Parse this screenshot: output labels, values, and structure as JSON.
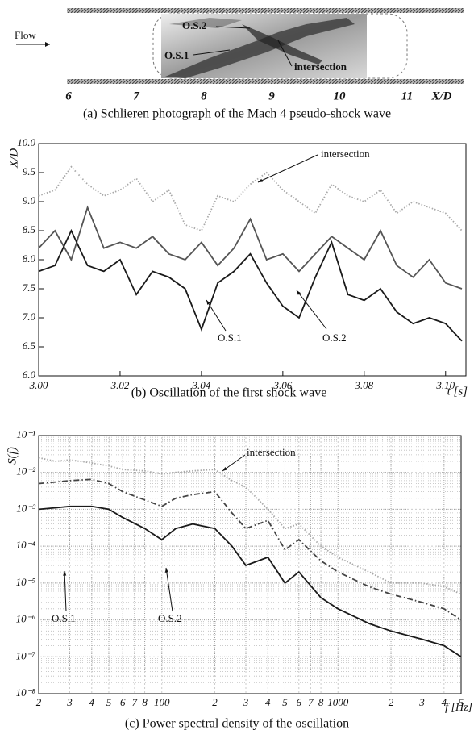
{
  "chart_data": [
    {
      "type": "image",
      "caption": "(a) Schlieren photograph of the Mach 4 pseudo-shock wave",
      "annotations": [
        "Flow",
        "O.S.2",
        "O.S.1",
        "intersection"
      ],
      "x_label": "X/D",
      "xlim": [
        6,
        11
      ],
      "xticks": [
        6,
        7,
        8,
        9,
        10,
        11
      ]
    },
    {
      "type": "line",
      "caption": "(b) Oscillation of the first shock wave",
      "x_label": "t [s]",
      "y_label": "X/D",
      "annotations": [
        "intersection",
        "O.S.1",
        "O.S.2"
      ],
      "xlim": [
        3.0,
        3.105
      ],
      "ylim": [
        6,
        10
      ],
      "xticks": [
        {
          "value": 3,
          "label": "3.00"
        },
        3.02,
        3.04,
        3.06,
        3.08,
        {
          "value": 3.1,
          "label": "3.10"
        }
      ],
      "yticks": [
        {
          "value": 6,
          "label": "6.0"
        },
        6.5,
        {
          "value": 7,
          "label": "7.0"
        },
        7.5,
        {
          "value": 8,
          "label": "8.0"
        },
        8.5,
        {
          "value": 9,
          "label": "9.0"
        },
        9.5,
        {
          "value": 10,
          "label": "10.0"
        }
      ],
      "x": [
        3.0,
        3.004,
        3.008,
        3.012,
        3.016,
        3.02,
        3.024,
        3.028,
        3.032,
        3.036,
        3.04,
        3.044,
        3.048,
        3.052,
        3.056,
        3.06,
        3.064,
        3.068,
        3.072,
        3.076,
        3.08,
        3.084,
        3.088,
        3.092,
        3.096,
        3.1,
        3.104
      ],
      "series": [
        {
          "name": "intersection",
          "color": "#a8a8a8",
          "line_style": "dotted",
          "values": [
            9.1,
            9.2,
            9.6,
            9.3,
            9.1,
            9.2,
            9.4,
            9.0,
            9.2,
            8.6,
            8.5,
            9.1,
            9.0,
            9.3,
            9.5,
            9.2,
            9.0,
            8.8,
            9.3,
            9.1,
            9.0,
            9.2,
            8.8,
            9.0,
            8.9,
            8.8,
            8.5
          ]
        },
        {
          "name": "O.S.2",
          "color": "#555555",
          "line_style": "solid",
          "values": [
            8.2,
            8.5,
            8.0,
            8.9,
            8.2,
            8.3,
            8.2,
            8.4,
            8.1,
            8.0,
            8.3,
            7.9,
            8.2,
            8.7,
            8.0,
            8.1,
            7.8,
            8.1,
            8.4,
            8.2,
            8.0,
            8.5,
            7.9,
            7.7,
            8.0,
            7.6,
            7.5
          ]
        },
        {
          "name": "O.S.1",
          "color": "#1a1a1a",
          "line_style": "solid",
          "values": [
            7.8,
            7.9,
            8.5,
            7.9,
            7.8,
            8.0,
            7.4,
            7.8,
            7.7,
            7.5,
            6.8,
            7.6,
            7.8,
            8.1,
            7.6,
            7.2,
            7.0,
            7.7,
            8.3,
            7.4,
            7.3,
            7.5,
            7.1,
            6.9,
            7.0,
            6.9,
            6.6
          ]
        }
      ]
    },
    {
      "type": "loglog",
      "caption": "(c) Power spectral density of the oscillation",
      "x_label": "f [Hz]",
      "y_label": "S(f)",
      "annotations": [
        "intersection",
        "O.S.1",
        "O.S.2"
      ],
      "xscale": "log",
      "yscale": "log",
      "grid": true,
      "xlim": [
        20,
        5000
      ],
      "ylim": [
        1e-08,
        0.1
      ],
      "xticks": [
        {
          "value": 20,
          "label": "2"
        },
        {
          "value": 30,
          "label": "3"
        },
        {
          "value": 40,
          "label": "4"
        },
        {
          "value": 50,
          "label": "5"
        },
        {
          "value": 60,
          "label": "6"
        },
        {
          "value": 70,
          "label": "7"
        },
        {
          "value": 80,
          "label": "8"
        },
        100,
        {
          "value": 200,
          "label": "2"
        },
        {
          "value": 300,
          "label": "3"
        },
        {
          "value": 400,
          "label": "4"
        },
        {
          "value": 500,
          "label": "5"
        },
        {
          "value": 600,
          "label": "6"
        },
        {
          "value": 700,
          "label": "7"
        },
        {
          "value": 800,
          "label": "8"
        },
        1000,
        {
          "value": 2000,
          "label": "2"
        },
        {
          "value": 3000,
          "label": "3"
        },
        {
          "value": 4000,
          "label": "4"
        },
        {
          "value": 5000,
          "label": "5"
        }
      ],
      "yticks": [
        {
          "value": 0.1,
          "label": "10⁻¹"
        },
        {
          "value": 0.01,
          "label": "10⁻²"
        },
        {
          "value": 0.001,
          "label": "10⁻³"
        },
        {
          "value": 0.0001,
          "label": "10⁻⁴"
        },
        {
          "value": 1e-05,
          "label": "10⁻⁵"
        },
        {
          "value": 1e-06,
          "label": "10⁻⁶"
        },
        {
          "value": 1e-07,
          "label": "10⁻⁷"
        },
        {
          "value": 1e-08,
          "label": "10⁻⁸"
        }
      ],
      "x": [
        20,
        25,
        30,
        40,
        50,
        60,
        80,
        100,
        120,
        150,
        200,
        250,
        300,
        400,
        500,
        600,
        800,
        1000,
        1500,
        2000,
        3000,
        4000,
        5000
      ],
      "series": [
        {
          "name": "intersection",
          "color": "#a8a8a8",
          "line_style": "dotted",
          "values": [
            0.025,
            0.02,
            0.022,
            0.018,
            0.015,
            0.012,
            0.011,
            0.009,
            0.01,
            0.011,
            0.012,
            0.006,
            0.004,
            0.001,
            0.0003,
            0.0004,
            0.0001,
            5e-05,
            2e-05,
            1e-05,
            1e-05,
            8e-06,
            5e-06
          ]
        },
        {
          "name": "O.S.2",
          "color": "#444444",
          "line_style": "dashdot",
          "values": [
            0.005,
            0.0055,
            0.006,
            0.0065,
            0.005,
            0.003,
            0.0018,
            0.0012,
            0.002,
            0.0025,
            0.003,
            0.0008,
            0.0003,
            0.0005,
            8e-05,
            0.00015,
            4e-05,
            2e-05,
            8e-06,
            5e-06,
            3e-06,
            2e-06,
            1e-06
          ]
        },
        {
          "name": "O.S.1",
          "color": "#1a1a1a",
          "line_style": "solid",
          "values": [
            0.001,
            0.0011,
            0.0012,
            0.0012,
            0.001,
            0.0006,
            0.0003,
            0.00015,
            0.0003,
            0.0004,
            0.0003,
            0.0001,
            3e-05,
            5e-05,
            1e-05,
            2e-05,
            4e-06,
            2e-06,
            8e-07,
            5e-07,
            3e-07,
            2e-07,
            1e-07
          ]
        }
      ]
    }
  ]
}
